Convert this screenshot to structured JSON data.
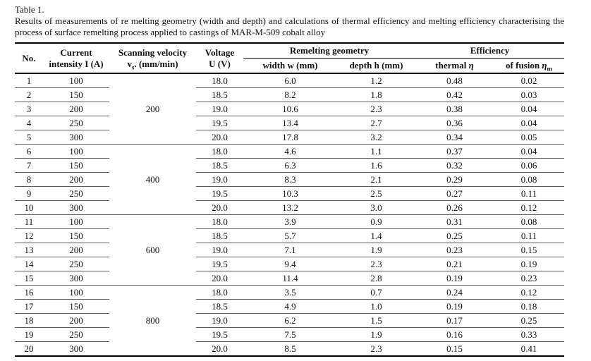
{
  "page": {
    "title": "Table 1.",
    "caption": "Results of measurements of re melting geometry (width and depth) and calculations of thermal efficiency and melting efficiency characterising the process of surface remelting process applied to castings of MAR-M-509 cobalt alloy"
  },
  "table": {
    "header": {
      "no": "No.",
      "current_line1": "Current",
      "current_line2": "intensity I (A)",
      "velocity_line1": "Scanning velocity",
      "velocity_sym": "v",
      "velocity_sub": "s",
      "velocity_rest": ". (mm/min)",
      "voltage_line1": "Voltage",
      "voltage_line2": "U (V)",
      "geometry_group": "Remelting geometry",
      "efficiency_group": "Efficiency",
      "width": "width w (mm)",
      "depth": "depth h (mm)",
      "thermal_pre": "thermal ",
      "thermal_sym": "η",
      "fusion_pre": "of fusion ",
      "fusion_sym": "η",
      "fusion_sub": "m"
    },
    "groups": [
      {
        "velocity": "200",
        "rows": [
          {
            "no": "1",
            "current": "100",
            "voltage": "18.0",
            "width": "6.0",
            "depth": "1.2",
            "thermal": "0.48",
            "fusion": "0.02"
          },
          {
            "no": "2",
            "current": "150",
            "voltage": "18.5",
            "width": "8.2",
            "depth": "1.8",
            "thermal": "0.42",
            "fusion": "0.03"
          },
          {
            "no": "3",
            "current": "200",
            "voltage": "19.0",
            "width": "10.6",
            "depth": "2.3",
            "thermal": "0.38",
            "fusion": "0.04"
          },
          {
            "no": "4",
            "current": "250",
            "voltage": "19.5",
            "width": "13.4",
            "depth": "2.7",
            "thermal": "0.36",
            "fusion": "0.04"
          },
          {
            "no": "5",
            "current": "300",
            "voltage": "20.0",
            "width": "17.8",
            "depth": "3.2",
            "thermal": "0.34",
            "fusion": "0.05"
          }
        ]
      },
      {
        "velocity": "400",
        "rows": [
          {
            "no": "6",
            "current": "100",
            "voltage": "18.0",
            "width": "4.6",
            "depth": "1.1",
            "thermal": "0.37",
            "fusion": "0.04"
          },
          {
            "no": "7",
            "current": "150",
            "voltage": "18.5",
            "width": "6.3",
            "depth": "1.6",
            "thermal": "0.32",
            "fusion": "0.06"
          },
          {
            "no": "8",
            "current": "200",
            "voltage": "19.0",
            "width": "8.3",
            "depth": "2.1",
            "thermal": "0.29",
            "fusion": "0.08"
          },
          {
            "no": "9",
            "current": "250",
            "voltage": "19.5",
            "width": "10.3",
            "depth": "2.5",
            "thermal": "0.27",
            "fusion": "0.11"
          },
          {
            "no": "10",
            "current": "300",
            "voltage": "20.0",
            "width": "13.2",
            "depth": "3.0",
            "thermal": "0.26",
            "fusion": "0.12"
          }
        ]
      },
      {
        "velocity": "600",
        "rows": [
          {
            "no": "11",
            "current": "100",
            "voltage": "18.0",
            "width": "3.9",
            "depth": "0.9",
            "thermal": "0.31",
            "fusion": "0.08"
          },
          {
            "no": "12",
            "current": "150",
            "voltage": "18.5",
            "width": "5.7",
            "depth": "1.4",
            "thermal": "0.25",
            "fusion": "0.11"
          },
          {
            "no": "13",
            "current": "200",
            "voltage": "19.0",
            "width": "7.1",
            "depth": "1.9",
            "thermal": "0.23",
            "fusion": "0.15"
          },
          {
            "no": "14",
            "current": "250",
            "voltage": "19.5",
            "width": "9.4",
            "depth": "2.3",
            "thermal": "0.21",
            "fusion": "0.19"
          },
          {
            "no": "15",
            "current": "300",
            "voltage": "20.0",
            "width": "11.4",
            "depth": "2.8",
            "thermal": "0.19",
            "fusion": "0.23"
          }
        ]
      },
      {
        "velocity": "800",
        "rows": [
          {
            "no": "16",
            "current": "100",
            "voltage": "18.0",
            "width": "3.5",
            "depth": "0.7",
            "thermal": "0.24",
            "fusion": "0.12"
          },
          {
            "no": "17",
            "current": "150",
            "voltage": "18.5",
            "width": "4.9",
            "depth": "1.0",
            "thermal": "0.19",
            "fusion": "0.18"
          },
          {
            "no": "18",
            "current": "200",
            "voltage": "19.0",
            "width": "6.2",
            "depth": "1.5",
            "thermal": "0.17",
            "fusion": "0.25"
          },
          {
            "no": "19",
            "current": "250",
            "voltage": "19.5",
            "width": "7.5",
            "depth": "1.9",
            "thermal": "0.16",
            "fusion": "0.33"
          },
          {
            "no": "20",
            "current": "300",
            "voltage": "20.0",
            "width": "8.5",
            "depth": "2.3",
            "thermal": "0.15",
            "fusion": "0.41"
          }
        ]
      }
    ]
  }
}
